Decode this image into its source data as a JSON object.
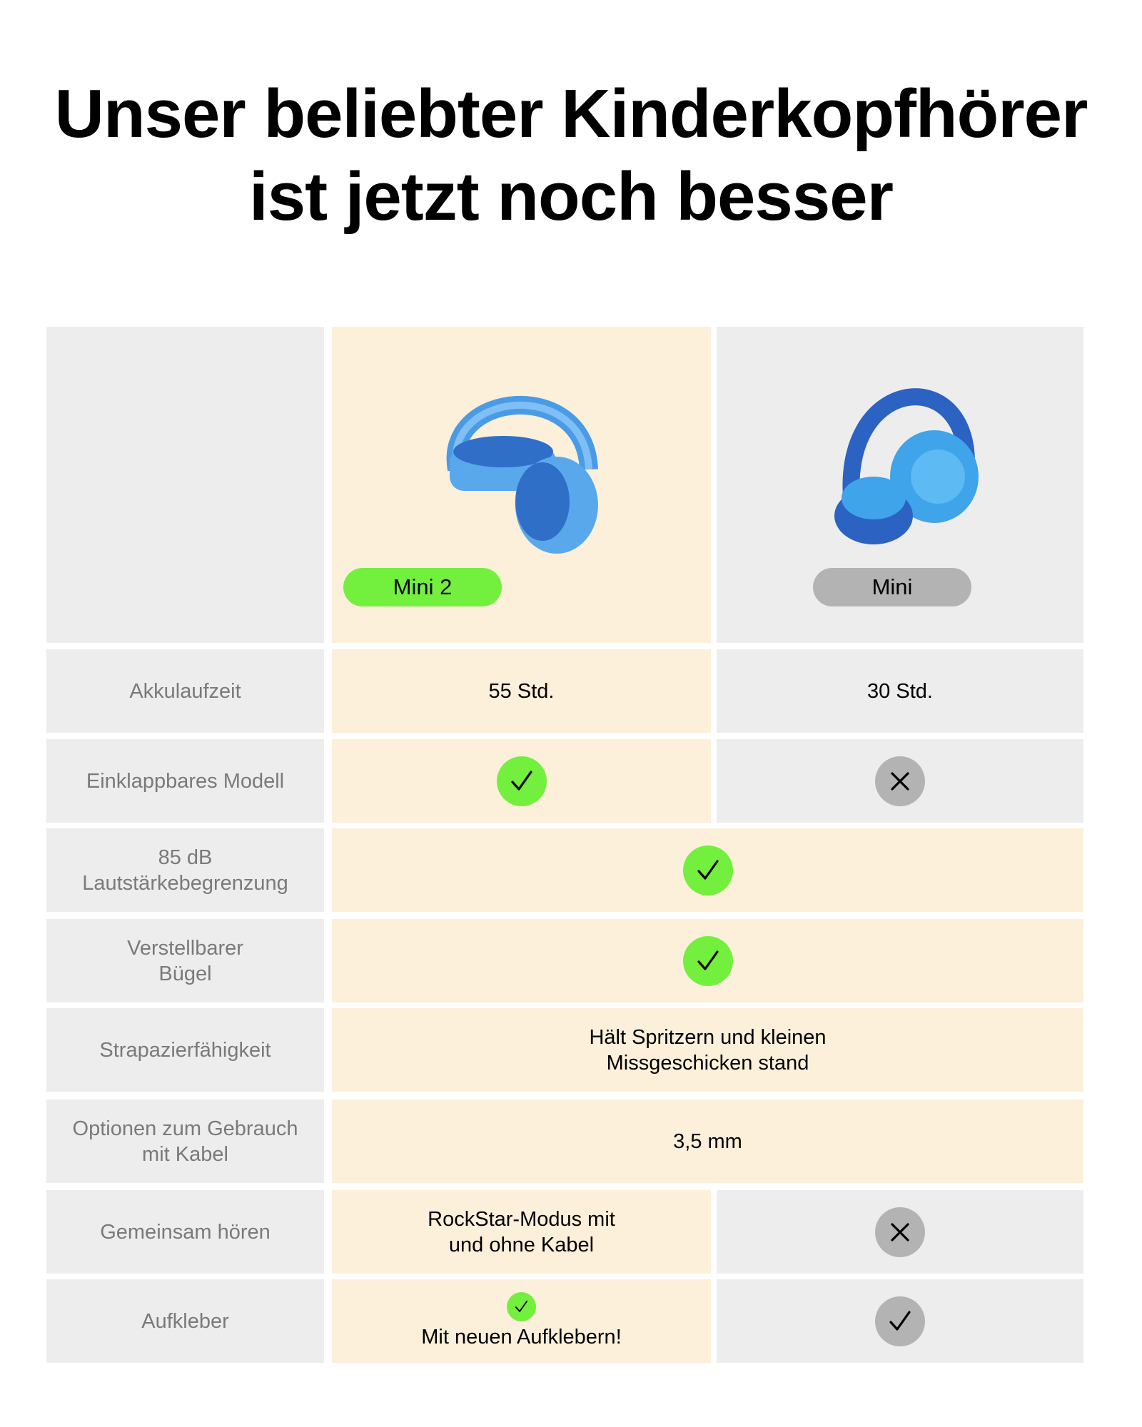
{
  "header": {
    "title": [
      "Unser beliebter Kinderkopfhörer",
      "ist jetzt noch besser"
    ]
  },
  "table": {
    "columns": [
      "Mini 2",
      "Mini"
    ],
    "rows": [
      [
        "Akkulaufzeit",
        "55 Std.",
        "30 Std."
      ],
      [
        "Einklappbares Modell"
      ],
      [
        "85 dB\nLautstärkebegrenzung"
      ],
      [
        "Verstellbarer\nBügel"
      ],
      [
        "Strapazierfähigkeit",
        "Hält Spritzern und kleinen\nMissgeschicken stand"
      ],
      [
        "Optionen zum Gebrauch\nmit Kabel",
        "3,5 mm"
      ],
      [
        "Gemeinsam hören",
        "RockStar-Modus mit\nund ohne Kabel"
      ],
      [
        "Aufkleber",
        "Mit neuen Aufklebern!"
      ]
    ]
  }
}
